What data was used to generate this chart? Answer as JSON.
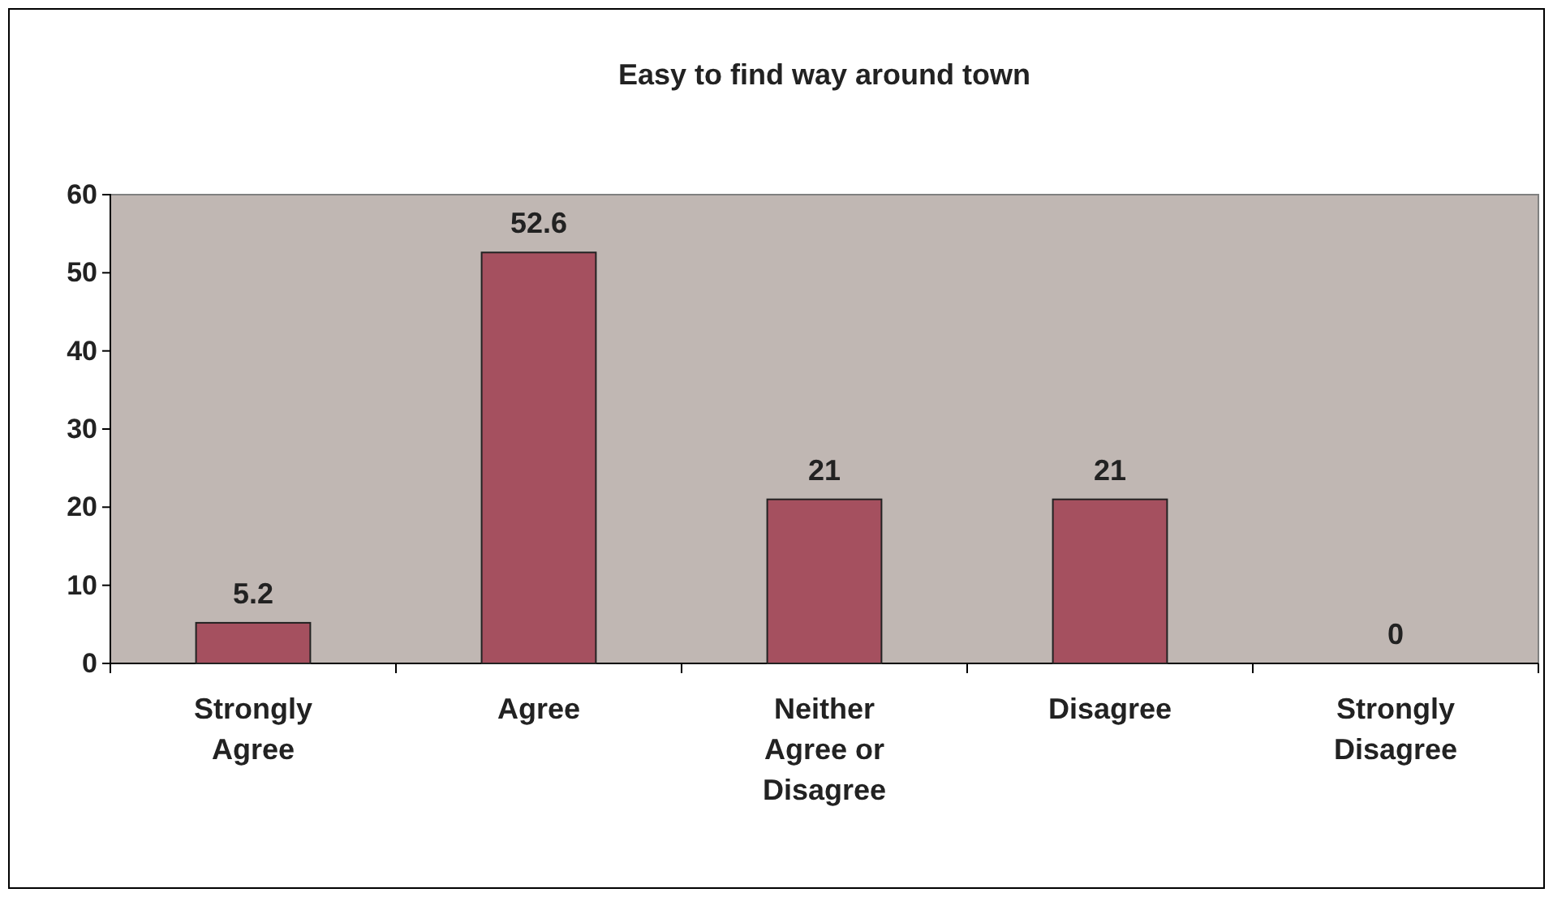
{
  "chart_data": {
    "type": "bar",
    "title": "Easy to find way around town",
    "categories": [
      "Strongly Agree",
      "Agree",
      "Neither Agree or Disagree",
      "Disagree",
      "Strongly Disagree"
    ],
    "values": [
      5.2,
      52.6,
      21,
      21,
      0
    ],
    "color": "#a5505f",
    "ylim": [
      0,
      60
    ],
    "yticks": [
      0,
      10,
      20,
      30,
      40,
      50,
      60
    ],
    "grid": false,
    "data_labels": true
  }
}
